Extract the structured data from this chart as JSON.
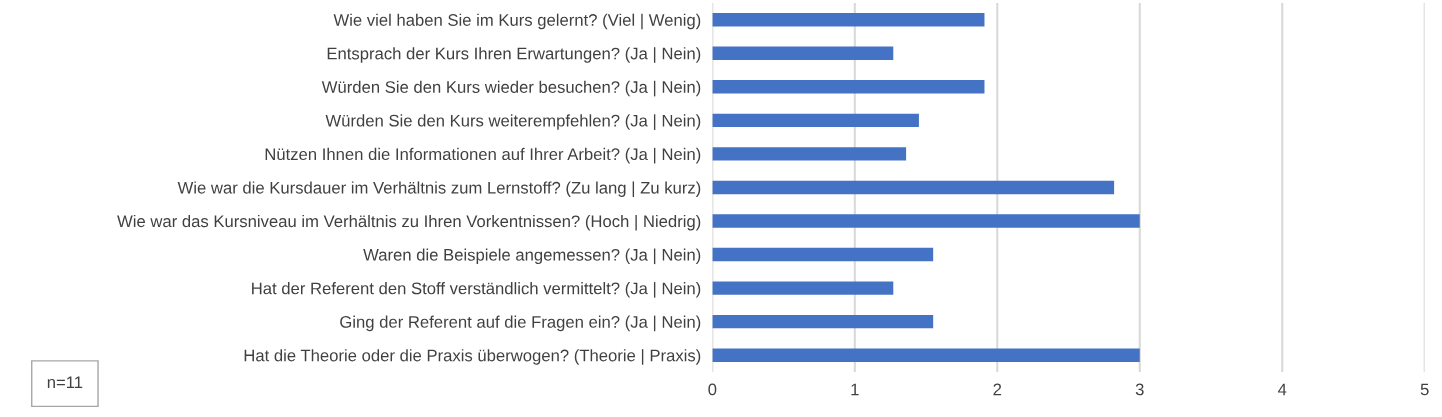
{
  "chart_data": {
    "type": "bar",
    "orientation": "horizontal",
    "categories": [
      "Wie viel haben Sie im Kurs gelernt? (Viel | Wenig)",
      "Entsprach der Kurs Ihren Erwartungen? (Ja | Nein)",
      "Würden Sie den Kurs wieder besuchen? (Ja | Nein)",
      "Würden Sie den Kurs weiterempfehlen? (Ja | Nein)",
      "Nützen Ihnen die Informationen auf Ihrer Arbeit? (Ja | Nein)",
      "Wie war die Kursdauer im Verhältnis zum Lernstoff? (Zu lang | Zu kurz)",
      "Wie war das Kursniveau im Verhältnis zu Ihren Vorkentnissen? (Hoch | Niedrig)",
      "Waren die Beispiele angemessen? (Ja | Nein)",
      "Hat der Referent den Stoff verständlich vermittelt? (Ja | Nein)",
      "Ging der Referent auf die Fragen ein? (Ja | Nein)",
      "Hat die Theorie oder die Praxis überwogen? (Theorie | Praxis)"
    ],
    "values": [
      1.91,
      1.27,
      1.91,
      1.45,
      1.36,
      2.82,
      3.0,
      1.55,
      1.27,
      1.55,
      3.0
    ],
    "color": "#4472c4",
    "xlim": [
      0,
      5
    ],
    "xticks": [
      0,
      1,
      2,
      3,
      4,
      5
    ],
    "grid": "x",
    "annotations": [
      "n=11"
    ]
  }
}
